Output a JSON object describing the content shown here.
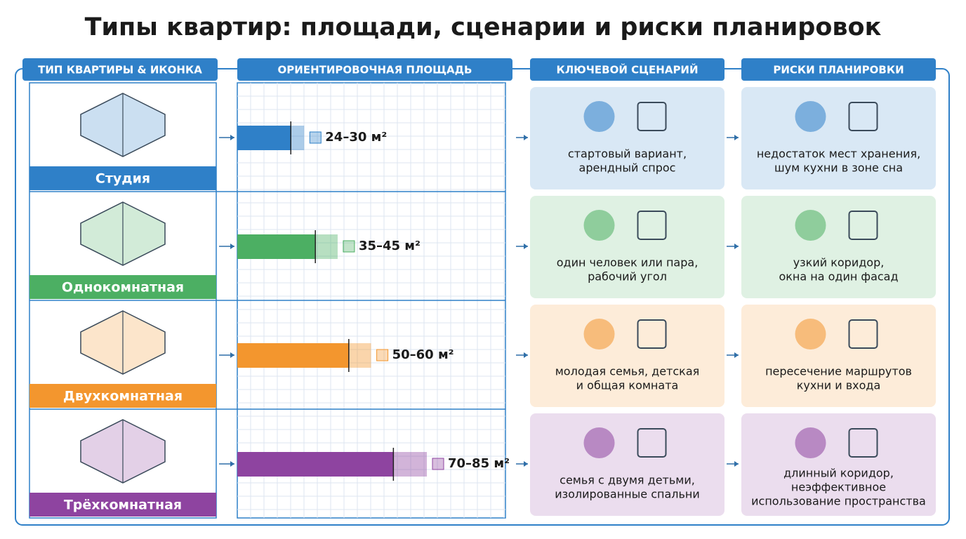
{
  "title": "Типы квартир: площади, сценарии и риски планировок",
  "headers": [
    "ТИП КВАРТИРЫ & ИКОНКА",
    "ОРИЕНТИРОВОЧНАЯ ПЛОЩАДЬ",
    "КЛЮЧЕВОЙ СЦЕНАРИЙ",
    "РИСКИ ПЛАНИРОВКИ"
  ],
  "rows": [
    {
      "type": "Студия",
      "color": "#2f80c8",
      "area": {
        "min": 24,
        "max": 30,
        "label": "24–30 м²"
      },
      "scenario": [
        "стартовый вариант,",
        "арендный спрос"
      ],
      "risks": [
        "недостаток мест хранения,",
        "шум кухни в зоне сна"
      ]
    },
    {
      "type": "Однокомнатная",
      "color": "#4caf63",
      "area": {
        "min": 35,
        "max": 45,
        "label": "35–45 м²"
      },
      "scenario": [
        "один человек или пара,",
        "рабочий угол"
      ],
      "risks": [
        "узкий коридор,",
        "окна на один фасад"
      ]
    },
    {
      "type": "Двухкомнатная",
      "color": "#f3962e",
      "area": {
        "min": 50,
        "max": 60,
        "label": "50–60 м²"
      },
      "scenario": [
        "молодая семья, детская",
        "и общая комната"
      ],
      "risks": [
        "пересечение маршрутов",
        "кухни и входа"
      ]
    },
    {
      "type": "Трёхкомнатная",
      "color": "#8e44a0",
      "area": {
        "min": 70,
        "max": 85,
        "label": "70–85 м²"
      },
      "scenario": [
        "семья с двумя детьми,",
        "изолированные спальни"
      ],
      "risks": [
        "длинный коридор,",
        "неэффективное",
        "использование пространства"
      ]
    }
  ]
}
